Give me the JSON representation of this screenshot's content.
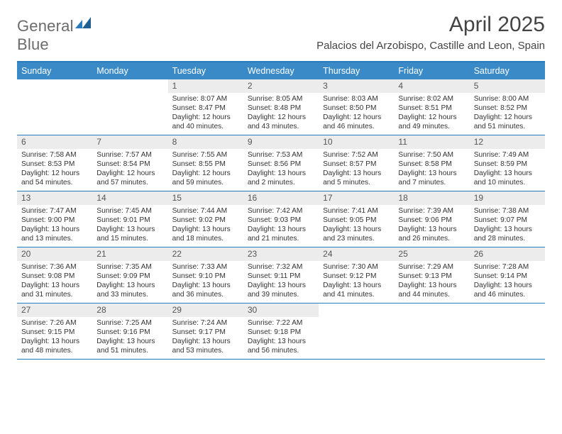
{
  "brand": {
    "word1": "General",
    "word2": "Blue"
  },
  "header": {
    "title": "April 2025",
    "location": "Palacios del Arzobispo, Castille and Leon, Spain"
  },
  "colors": {
    "accent": "#2a7bbd",
    "header_bg": "#3a8ac7",
    "header_text": "#ffffff",
    "daynum_bg": "#ececec",
    "text": "#333333"
  },
  "weekdays": [
    "Sunday",
    "Monday",
    "Tuesday",
    "Wednesday",
    "Thursday",
    "Friday",
    "Saturday"
  ],
  "weeks": [
    [
      {
        "day": "",
        "empty": true
      },
      {
        "day": "",
        "empty": true
      },
      {
        "day": "1",
        "sunrise": "Sunrise: 8:07 AM",
        "sunset": "Sunset: 8:47 PM",
        "daylight1": "Daylight: 12 hours",
        "daylight2": "and 40 minutes."
      },
      {
        "day": "2",
        "sunrise": "Sunrise: 8:05 AM",
        "sunset": "Sunset: 8:48 PM",
        "daylight1": "Daylight: 12 hours",
        "daylight2": "and 43 minutes."
      },
      {
        "day": "3",
        "sunrise": "Sunrise: 8:03 AM",
        "sunset": "Sunset: 8:50 PM",
        "daylight1": "Daylight: 12 hours",
        "daylight2": "and 46 minutes."
      },
      {
        "day": "4",
        "sunrise": "Sunrise: 8:02 AM",
        "sunset": "Sunset: 8:51 PM",
        "daylight1": "Daylight: 12 hours",
        "daylight2": "and 49 minutes."
      },
      {
        "day": "5",
        "sunrise": "Sunrise: 8:00 AM",
        "sunset": "Sunset: 8:52 PM",
        "daylight1": "Daylight: 12 hours",
        "daylight2": "and 51 minutes."
      }
    ],
    [
      {
        "day": "6",
        "sunrise": "Sunrise: 7:58 AM",
        "sunset": "Sunset: 8:53 PM",
        "daylight1": "Daylight: 12 hours",
        "daylight2": "and 54 minutes."
      },
      {
        "day": "7",
        "sunrise": "Sunrise: 7:57 AM",
        "sunset": "Sunset: 8:54 PM",
        "daylight1": "Daylight: 12 hours",
        "daylight2": "and 57 minutes."
      },
      {
        "day": "8",
        "sunrise": "Sunrise: 7:55 AM",
        "sunset": "Sunset: 8:55 PM",
        "daylight1": "Daylight: 12 hours",
        "daylight2": "and 59 minutes."
      },
      {
        "day": "9",
        "sunrise": "Sunrise: 7:53 AM",
        "sunset": "Sunset: 8:56 PM",
        "daylight1": "Daylight: 13 hours",
        "daylight2": "and 2 minutes."
      },
      {
        "day": "10",
        "sunrise": "Sunrise: 7:52 AM",
        "sunset": "Sunset: 8:57 PM",
        "daylight1": "Daylight: 13 hours",
        "daylight2": "and 5 minutes."
      },
      {
        "day": "11",
        "sunrise": "Sunrise: 7:50 AM",
        "sunset": "Sunset: 8:58 PM",
        "daylight1": "Daylight: 13 hours",
        "daylight2": "and 7 minutes."
      },
      {
        "day": "12",
        "sunrise": "Sunrise: 7:49 AM",
        "sunset": "Sunset: 8:59 PM",
        "daylight1": "Daylight: 13 hours",
        "daylight2": "and 10 minutes."
      }
    ],
    [
      {
        "day": "13",
        "sunrise": "Sunrise: 7:47 AM",
        "sunset": "Sunset: 9:00 PM",
        "daylight1": "Daylight: 13 hours",
        "daylight2": "and 13 minutes."
      },
      {
        "day": "14",
        "sunrise": "Sunrise: 7:45 AM",
        "sunset": "Sunset: 9:01 PM",
        "daylight1": "Daylight: 13 hours",
        "daylight2": "and 15 minutes."
      },
      {
        "day": "15",
        "sunrise": "Sunrise: 7:44 AM",
        "sunset": "Sunset: 9:02 PM",
        "daylight1": "Daylight: 13 hours",
        "daylight2": "and 18 minutes."
      },
      {
        "day": "16",
        "sunrise": "Sunrise: 7:42 AM",
        "sunset": "Sunset: 9:03 PM",
        "daylight1": "Daylight: 13 hours",
        "daylight2": "and 21 minutes."
      },
      {
        "day": "17",
        "sunrise": "Sunrise: 7:41 AM",
        "sunset": "Sunset: 9:05 PM",
        "daylight1": "Daylight: 13 hours",
        "daylight2": "and 23 minutes."
      },
      {
        "day": "18",
        "sunrise": "Sunrise: 7:39 AM",
        "sunset": "Sunset: 9:06 PM",
        "daylight1": "Daylight: 13 hours",
        "daylight2": "and 26 minutes."
      },
      {
        "day": "19",
        "sunrise": "Sunrise: 7:38 AM",
        "sunset": "Sunset: 9:07 PM",
        "daylight1": "Daylight: 13 hours",
        "daylight2": "and 28 minutes."
      }
    ],
    [
      {
        "day": "20",
        "sunrise": "Sunrise: 7:36 AM",
        "sunset": "Sunset: 9:08 PM",
        "daylight1": "Daylight: 13 hours",
        "daylight2": "and 31 minutes."
      },
      {
        "day": "21",
        "sunrise": "Sunrise: 7:35 AM",
        "sunset": "Sunset: 9:09 PM",
        "daylight1": "Daylight: 13 hours",
        "daylight2": "and 33 minutes."
      },
      {
        "day": "22",
        "sunrise": "Sunrise: 7:33 AM",
        "sunset": "Sunset: 9:10 PM",
        "daylight1": "Daylight: 13 hours",
        "daylight2": "and 36 minutes."
      },
      {
        "day": "23",
        "sunrise": "Sunrise: 7:32 AM",
        "sunset": "Sunset: 9:11 PM",
        "daylight1": "Daylight: 13 hours",
        "daylight2": "and 39 minutes."
      },
      {
        "day": "24",
        "sunrise": "Sunrise: 7:30 AM",
        "sunset": "Sunset: 9:12 PM",
        "daylight1": "Daylight: 13 hours",
        "daylight2": "and 41 minutes."
      },
      {
        "day": "25",
        "sunrise": "Sunrise: 7:29 AM",
        "sunset": "Sunset: 9:13 PM",
        "daylight1": "Daylight: 13 hours",
        "daylight2": "and 44 minutes."
      },
      {
        "day": "26",
        "sunrise": "Sunrise: 7:28 AM",
        "sunset": "Sunset: 9:14 PM",
        "daylight1": "Daylight: 13 hours",
        "daylight2": "and 46 minutes."
      }
    ],
    [
      {
        "day": "27",
        "sunrise": "Sunrise: 7:26 AM",
        "sunset": "Sunset: 9:15 PM",
        "daylight1": "Daylight: 13 hours",
        "daylight2": "and 48 minutes."
      },
      {
        "day": "28",
        "sunrise": "Sunrise: 7:25 AM",
        "sunset": "Sunset: 9:16 PM",
        "daylight1": "Daylight: 13 hours",
        "daylight2": "and 51 minutes."
      },
      {
        "day": "29",
        "sunrise": "Sunrise: 7:24 AM",
        "sunset": "Sunset: 9:17 PM",
        "daylight1": "Daylight: 13 hours",
        "daylight2": "and 53 minutes."
      },
      {
        "day": "30",
        "sunrise": "Sunrise: 7:22 AM",
        "sunset": "Sunset: 9:18 PM",
        "daylight1": "Daylight: 13 hours",
        "daylight2": "and 56 minutes."
      },
      {
        "day": "",
        "empty": true
      },
      {
        "day": "",
        "empty": true
      },
      {
        "day": "",
        "empty": true
      }
    ]
  ]
}
